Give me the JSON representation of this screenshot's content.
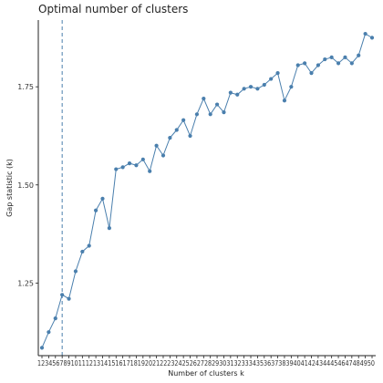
{
  "chart_data": {
    "type": "line",
    "title": "Optimal number of clusters",
    "xlabel": "Number of clusters k",
    "ylabel": "Gap statistic (k)",
    "categories": [
      "1",
      "2",
      "3",
      "4",
      "5",
      "6",
      "7",
      "8",
      "9",
      "10",
      "11",
      "12",
      "13",
      "14",
      "15",
      "16",
      "17",
      "18",
      "19",
      "20",
      "21",
      "22",
      "23",
      "24",
      "25",
      "26",
      "27",
      "28",
      "29",
      "30",
      "31",
      "32",
      "33",
      "34",
      "35",
      "36",
      "37",
      "38",
      "39",
      "40",
      "41",
      "42",
      "43",
      "44",
      "45",
      "46",
      "47",
      "48",
      "49",
      "50"
    ],
    "x_tick_text": "1234567891011121314151617181920212223242526272829303132333435363738394041424344454647484950",
    "values": [
      1.085,
      1.125,
      1.16,
      1.22,
      1.21,
      1.28,
      1.33,
      1.345,
      1.435,
      1.465,
      1.39,
      1.54,
      1.545,
      1.555,
      1.55,
      1.565,
      1.535,
      1.6,
      1.575,
      1.62,
      1.64,
      1.665,
      1.625,
      1.68,
      1.72,
      1.68,
      1.705,
      1.685,
      1.735,
      1.73,
      1.745,
      1.75,
      1.745,
      1.755,
      1.77,
      1.785,
      1.715,
      1.75,
      1.805,
      1.81,
      1.785,
      1.805,
      1.82,
      1.825,
      1.81,
      1.825,
      1.81,
      1.83,
      1.885,
      1.875
    ],
    "y_ticks": [
      "1.25",
      "1.50",
      "1.75"
    ],
    "ylim": [
      1.065,
      1.92
    ],
    "optimal_k": 4,
    "line_color": "#4a7fad",
    "point_color": "#4a7fad",
    "vline_color": "#4a7fad",
    "grid": false,
    "legend": "none"
  }
}
